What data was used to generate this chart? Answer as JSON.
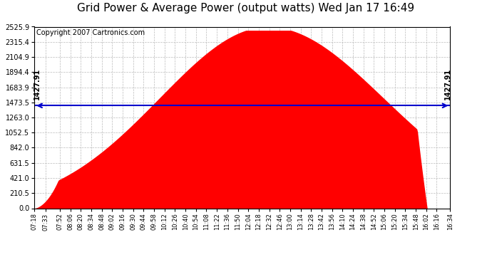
{
  "title": "Grid Power & Average Power (output watts) Wed Jan 17 16:49",
  "copyright": "Copyright 2007 Cartronics.com",
  "avg_value": 1427.91,
  "y_max": 2525.9,
  "yticks": [
    0.0,
    210.5,
    421.0,
    631.5,
    842.0,
    1052.5,
    1263.0,
    1473.5,
    1683.9,
    1894.4,
    2104.9,
    2315.4,
    2525.9
  ],
  "ytick_labels": [
    "0.0",
    "210.5",
    "421.0",
    "631.5",
    "842.0",
    "1052.5",
    "1263.0",
    "1473.5",
    "1683.9",
    "1894.4",
    "2104.9",
    "2315.4",
    "2525.9"
  ],
  "xtick_labels": [
    "07:18",
    "07:33",
    "07:52",
    "08:06",
    "08:20",
    "08:34",
    "08:48",
    "09:02",
    "09:16",
    "09:30",
    "09:44",
    "09:58",
    "10:12",
    "10:26",
    "10:40",
    "10:54",
    "11:08",
    "11:22",
    "11:36",
    "11:50",
    "12:04",
    "12:18",
    "12:32",
    "12:46",
    "13:00",
    "13:14",
    "13:28",
    "13:42",
    "13:56",
    "14:10",
    "14:24",
    "14:38",
    "14:52",
    "15:06",
    "15:20",
    "15:34",
    "15:48",
    "16:02",
    "16:16",
    "16:34"
  ],
  "fill_color": "#ff0000",
  "line_color": "#0000cc",
  "bg_color": "#ffffff",
  "plot_bg_color": "#ffffff",
  "grid_color": "#bbbbbb",
  "title_fontsize": 11,
  "copyright_fontsize": 7
}
